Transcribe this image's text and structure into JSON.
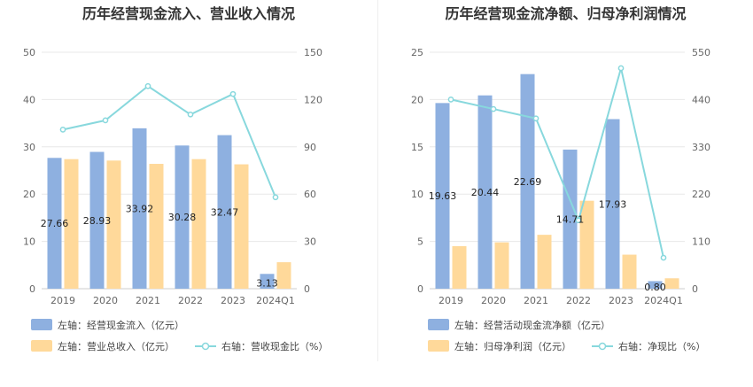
{
  "chart_data": [
    {
      "type": "bar",
      "title": "历年经营现金流入、营业收入情况",
      "categories": [
        "2019",
        "2020",
        "2021",
        "2022",
        "2023",
        "2024Q1"
      ],
      "y_left": {
        "ticks": [
          "0",
          "10",
          "20",
          "30",
          "40",
          "50"
        ],
        "range": [
          0,
          50
        ]
      },
      "y_right": {
        "ticks": [
          "0",
          "30",
          "60",
          "90",
          "120",
          "150"
        ],
        "range": [
          0,
          150
        ]
      },
      "series": [
        {
          "name": "左轴：经营现金流入（亿元）",
          "type": "bar",
          "axis": "left",
          "color": "#8eb0e0",
          "values": [
            27.66,
            28.93,
            33.92,
            30.28,
            32.47,
            3.13
          ],
          "labels": [
            "27.66",
            "28.93",
            "33.92",
            "30.28",
            "32.47",
            "3.13"
          ]
        },
        {
          "name": "左轴：营业总收入（亿元）",
          "type": "bar",
          "axis": "left",
          "color": "#ffd99a",
          "values": [
            27.4,
            27.1,
            26.4,
            27.4,
            26.3,
            5.6
          ]
        },
        {
          "name": "右轴：营收现金比（%）",
          "type": "line",
          "axis": "right",
          "color": "#88d8dd",
          "values": [
            100.9,
            106.8,
            128.5,
            110.5,
            123.5,
            58.0
          ]
        }
      ]
    },
    {
      "type": "bar",
      "title": "历年经营现金流净额、归母净利润情况",
      "categories": [
        "2019",
        "2020",
        "2021",
        "2022",
        "2023",
        "2024Q1"
      ],
      "y_left": {
        "ticks": [
          "0",
          "5",
          "10",
          "15",
          "20",
          "25"
        ],
        "range": [
          0,
          25
        ]
      },
      "y_right": {
        "ticks": [
          "0",
          "110",
          "220",
          "330",
          "440",
          "550"
        ],
        "range": [
          0,
          550
        ]
      },
      "series": [
        {
          "name": "左轴：经营活动现金流净额（亿元）",
          "type": "bar",
          "axis": "left",
          "color": "#8eb0e0",
          "values": [
            19.63,
            20.44,
            22.69,
            14.71,
            17.93,
            0.8
          ],
          "labels": [
            "19.63",
            "20.44",
            "22.69",
            "14.71",
            "17.93",
            "0.80"
          ]
        },
        {
          "name": "左轴：归母净利润（亿元）",
          "type": "bar",
          "axis": "left",
          "color": "#ffd99a",
          "values": [
            4.5,
            4.9,
            5.7,
            9.3,
            3.6,
            1.1
          ]
        },
        {
          "name": "右轴：净现比（%）",
          "type": "line",
          "axis": "right",
          "color": "#88d8dd",
          "values": [
            440,
            418,
            396,
            159,
            513,
            72
          ]
        }
      ]
    }
  ]
}
